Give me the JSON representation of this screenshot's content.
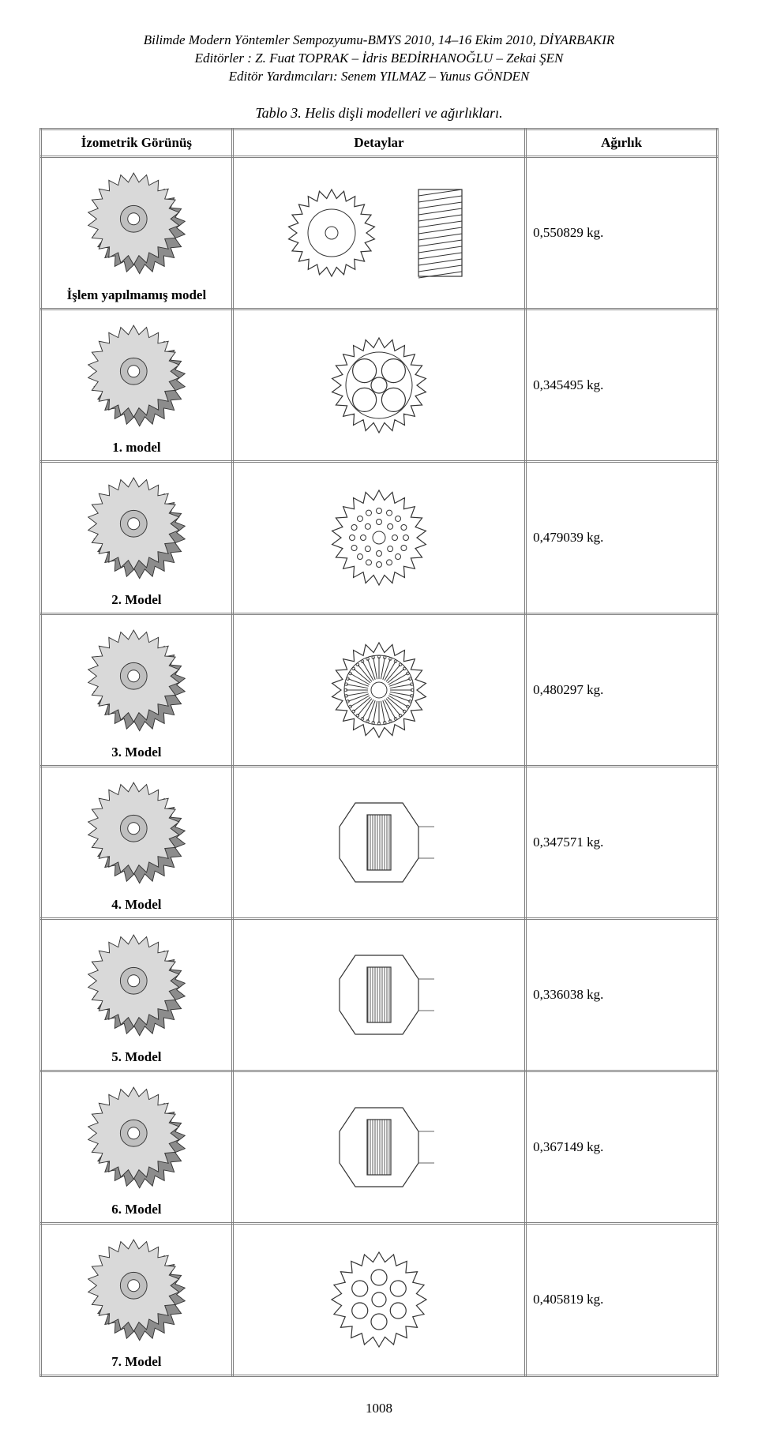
{
  "header": {
    "line1": "Bilimde Modern Yöntemler Sempozyumu-BMYS 2010, 14–16 Ekim 2010, DİYARBAKIR",
    "line2": "Editörler : Z. Fuat TOPRAK – İdris BEDİRHANOĞLU – Zekai ŞEN",
    "line3": "Editör Yardımcıları: Senem YILMAZ – Yunus GÖNDEN"
  },
  "caption": "Tablo 3. Helis dişli modelleri ve ağırlıkları.",
  "columns": {
    "iso": "İzometrik Görünüş",
    "det": "Detaylar",
    "wt": "Ağırlık"
  },
  "rows": [
    {
      "label": "İşlem yapılmamış model",
      "weight": "0,550829 kg.",
      "detail_kind": "front_side"
    },
    {
      "label": "1. model",
      "weight": "0,345495 kg.",
      "detail_kind": "spokes"
    },
    {
      "label": "2. Model",
      "weight": "0,479039 kg.",
      "detail_kind": "holes_ring"
    },
    {
      "label": "3. Model",
      "weight": "0,480297 kg.",
      "detail_kind": "radial_slots"
    },
    {
      "label": "4. Model",
      "weight": "0,347571 kg.",
      "detail_kind": "section"
    },
    {
      "label": "5. Model",
      "weight": "0,336038 kg.",
      "detail_kind": "section"
    },
    {
      "label": "6. Model",
      "weight": "0,367149 kg.",
      "detail_kind": "section"
    },
    {
      "label": "7. Model",
      "weight": "0,405819 kg.",
      "detail_kind": "big_holes"
    }
  ],
  "page_number": "1008",
  "colors": {
    "stroke": "#333333",
    "fill_gear_light": "#d9d9d9",
    "fill_gear_mid": "#bfbfbf",
    "fill_gear_dark": "#8c8c8c",
    "bg": "#ffffff"
  }
}
